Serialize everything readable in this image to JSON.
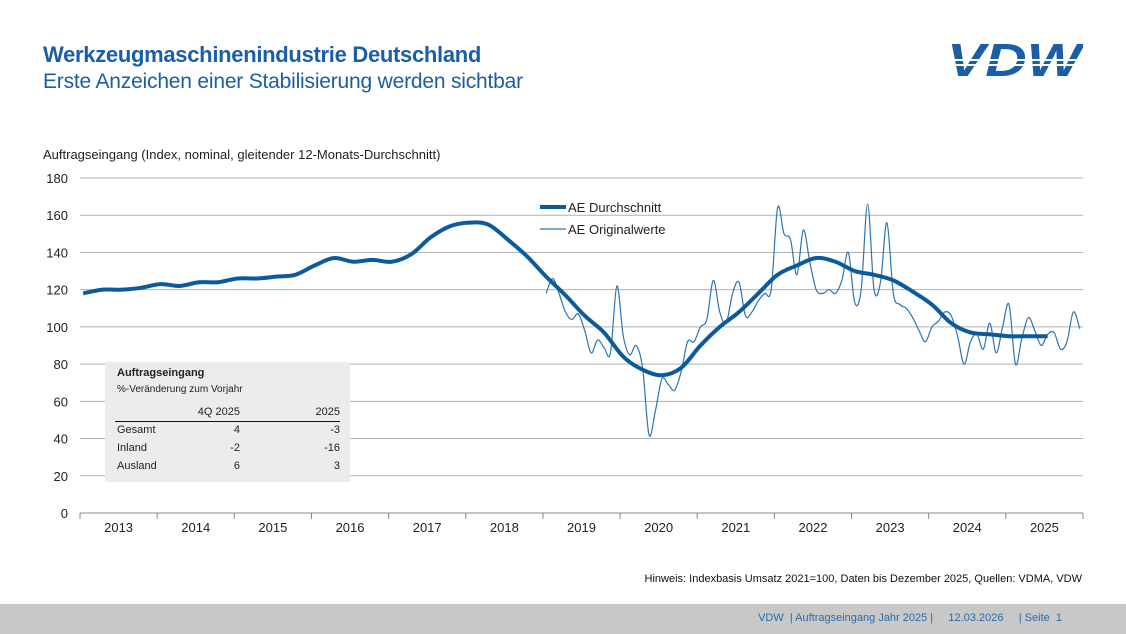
{
  "header": {
    "title": "Werkzeugmaschinenindustrie Deutschland",
    "subtitle": "Erste Anzeichen einer Stabilisierung werden sichtbar",
    "logo_text": "VDW"
  },
  "colors": {
    "brand": "#1a5ea6",
    "average_line": "#0d5a9a",
    "original_line": "#2e74b0",
    "footer_bg": "#c8c8c8",
    "table_bg": "#ececec"
  },
  "chart_data": {
    "type": "line",
    "ylabel": "Auftragseingang (Index, nominal, gleitender 12-Monats-Durchschnitt)",
    "ylim": [
      0,
      180
    ],
    "yticks": [
      0,
      20,
      40,
      60,
      80,
      100,
      120,
      140,
      160,
      180
    ],
    "xlim": [
      "2013-01",
      "2025-12"
    ],
    "xticks": [
      "2013",
      "2014",
      "2015",
      "2016",
      "2017",
      "2018",
      "2019",
      "2020",
      "2021",
      "2022",
      "2023",
      "2024",
      "2025"
    ],
    "grid": true,
    "legend_placement": "top-center",
    "series": [
      {
        "name": "AE Durchschnitt",
        "start": "2013-01",
        "frequency": "quarterly",
        "values": [
          118,
          120,
          120,
          121,
          123,
          122,
          124,
          124,
          126,
          126,
          127,
          128,
          133,
          137,
          135,
          136,
          135,
          139,
          148,
          154,
          156,
          155,
          147,
          138,
          127,
          117,
          106,
          97,
          84,
          77,
          74,
          78,
          90,
          100,
          108,
          118,
          128,
          133,
          137,
          135,
          130,
          128,
          125,
          119,
          112,
          102,
          97,
          96,
          95,
          95,
          95
        ]
      },
      {
        "name": "AE Originalwerte",
        "start": "2019-01",
        "frequency": "monthly",
        "values": [
          118,
          126,
          118,
          108,
          104,
          107,
          98,
          86,
          93,
          89,
          86,
          122,
          95,
          85,
          90,
          78,
          42,
          55,
          72,
          69,
          66,
          76,
          92,
          92,
          100,
          104,
          125,
          108,
          102,
          118,
          124,
          106,
          108,
          114,
          118,
          120,
          164,
          150,
          147,
          128,
          152,
          135,
          120,
          118,
          120,
          118,
          125,
          140,
          113,
          120,
          166,
          120,
          124,
          156,
          118,
          112,
          110,
          105,
          98,
          92,
          100,
          103,
          108,
          106,
          95,
          80,
          92,
          96,
          88,
          102,
          86,
          100,
          112,
          80,
          94,
          105,
          98,
          90,
          96,
          97,
          88,
          92,
          108,
          99
        ]
      }
    ]
  },
  "table": {
    "title": "Auftragseingang",
    "subtitle": "%-Veränderung zum Vorjahr",
    "columns": [
      "",
      "4Q 2025",
      "2025"
    ],
    "rows": [
      {
        "label": "Gesamt",
        "q4": "4",
        "year": "-3"
      },
      {
        "label": "Inland",
        "q4": "-2",
        "year": "-16"
      },
      {
        "label": "Ausland",
        "q4": "6",
        "year": "3"
      }
    ]
  },
  "note": "Hinweis: Indexbasis Umsatz 2021=100, Daten bis Dezember 2025, Quellen: VDMA, VDW",
  "footer": {
    "text": "VDW  | Auftragseingang Jahr 2025 |     12.03.2026     | Seite  1"
  }
}
